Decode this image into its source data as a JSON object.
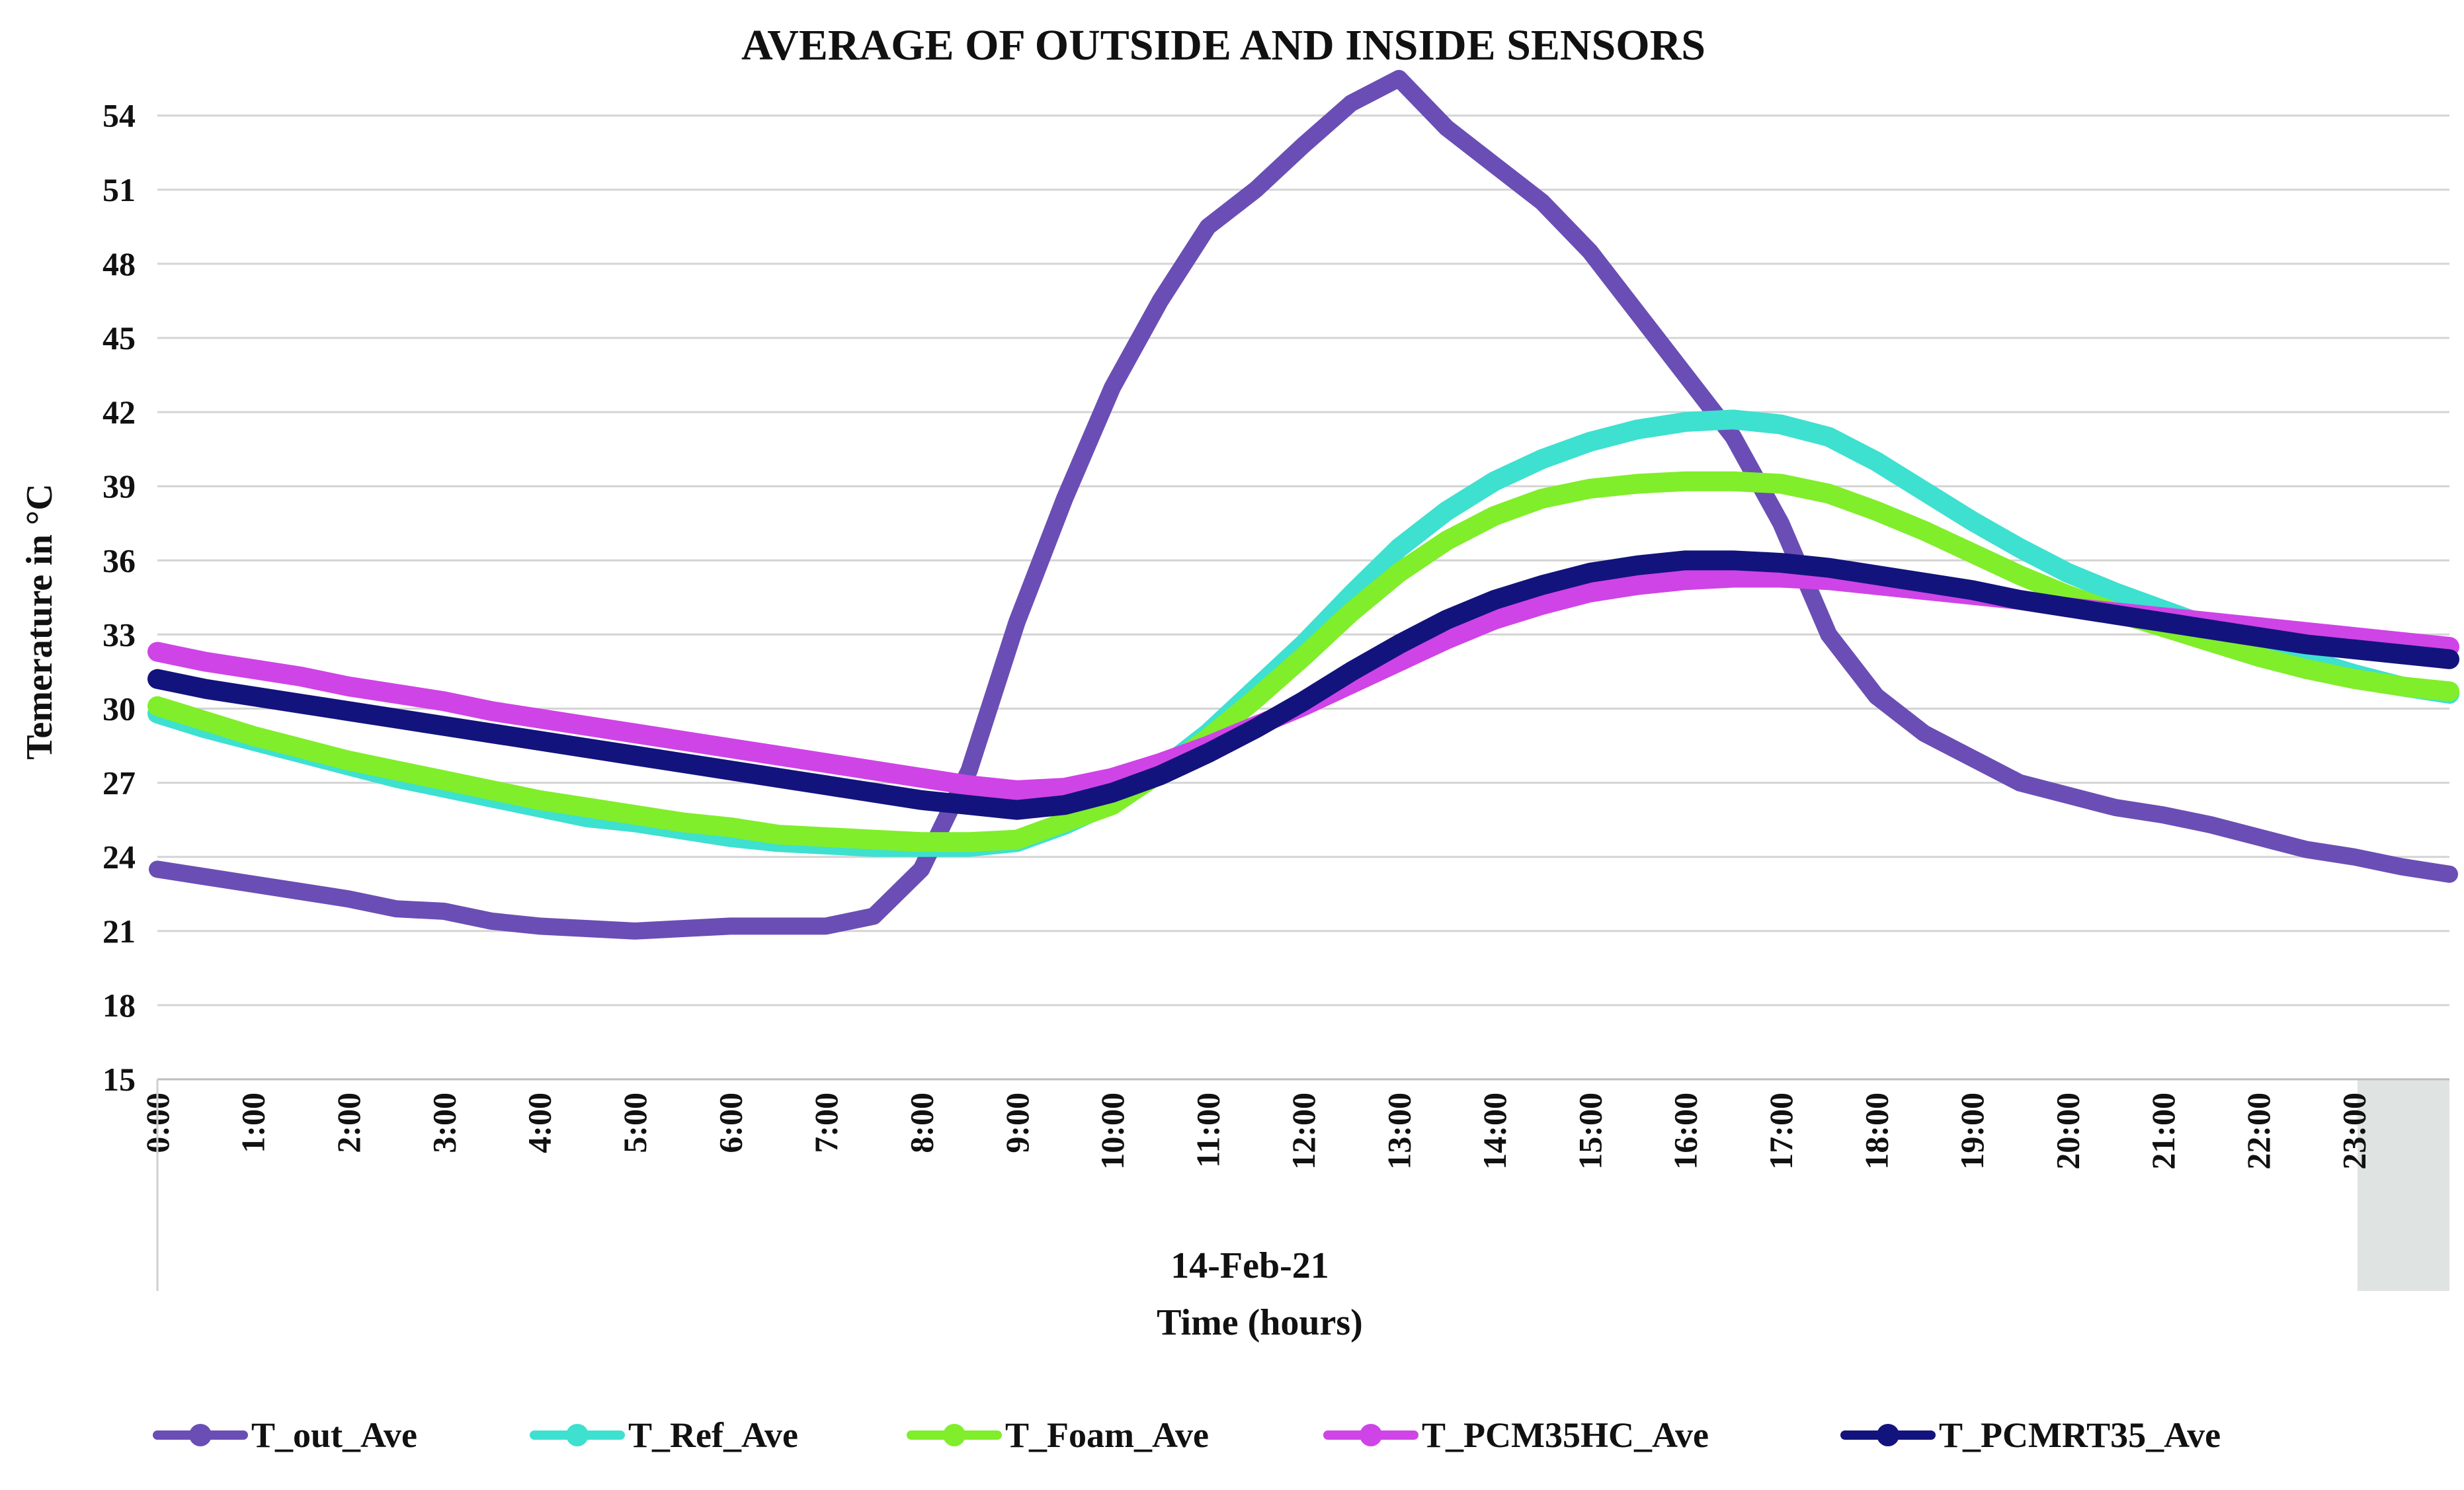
{
  "chart_data": {
    "type": "line",
    "title": "AVERAGE OF OUTSIDE AND INSIDE SENSORS",
    "xlabel": "Time (hours)",
    "date_label": "14-Feb-21",
    "ylabel": "Temerature in °C",
    "ylim": [
      15,
      56
    ],
    "y_ticks": [
      15,
      18,
      21,
      24,
      27,
      30,
      33,
      36,
      39,
      42,
      45,
      48,
      51,
      54
    ],
    "grid": true,
    "legend_position": "bottom",
    "x_range": [
      0,
      24
    ],
    "categories": [
      "0:00",
      "1:00",
      "2:00",
      "3:00",
      "4:00",
      "5:00",
      "6:00",
      "7:00",
      "8:00",
      "9:00",
      "10:00",
      "11:00",
      "12:00",
      "13:00",
      "14:00",
      "15:00",
      "16:00",
      "17:00",
      "18:00",
      "19:00",
      "20:00",
      "21:00",
      "22:00",
      "23:00"
    ],
    "x": [
      0,
      0.5,
      1,
      1.5,
      2,
      2.5,
      3,
      3.5,
      4,
      4.5,
      5,
      5.5,
      6,
      6.5,
      7,
      7.5,
      8,
      8.5,
      9,
      9.5,
      10,
      10.5,
      11,
      11.5,
      12,
      12.5,
      13,
      13.5,
      14,
      14.5,
      15,
      15.5,
      16,
      16.5,
      17,
      17.5,
      18,
      18.5,
      19,
      19.5,
      20,
      20.5,
      21,
      21.5,
      22,
      22.5,
      23,
      23.5,
      24
    ],
    "series": [
      {
        "name": "T_out_Ave",
        "color": "#6a4eb5",
        "values": [
          23.5,
          23.2,
          22.9,
          22.6,
          22.3,
          21.9,
          21.8,
          21.4,
          21.2,
          21.1,
          21.0,
          21.1,
          21.2,
          21.2,
          21.2,
          21.6,
          23.5,
          27.5,
          33.5,
          38.5,
          43.0,
          46.5,
          49.5,
          51.0,
          52.8,
          54.5,
          55.5,
          53.5,
          52.0,
          50.5,
          48.5,
          46.0,
          43.5,
          41.0,
          37.5,
          33.0,
          30.5,
          29.0,
          28.0,
          27.0,
          26.5,
          26.0,
          25.7,
          25.3,
          24.8,
          24.3,
          24.0,
          23.6,
          23.3
        ]
      },
      {
        "name": "T_Ref_Ave",
        "color": "#3ee0d0",
        "values": [
          29.8,
          29.2,
          28.7,
          28.2,
          27.7,
          27.2,
          26.8,
          26.4,
          26.0,
          25.6,
          25.4,
          25.1,
          24.8,
          24.6,
          24.5,
          24.4,
          24.4,
          24.4,
          24.6,
          25.3,
          26.2,
          27.5,
          29.0,
          30.8,
          32.6,
          34.6,
          36.5,
          38.0,
          39.2,
          40.1,
          40.8,
          41.3,
          41.6,
          41.7,
          41.5,
          41.0,
          40.0,
          38.8,
          37.6,
          36.5,
          35.5,
          34.7,
          34.0,
          33.3,
          32.6,
          32.0,
          31.4,
          30.9,
          30.6
        ]
      },
      {
        "name": "T_Foam_Ave",
        "color": "#80ee2a",
        "values": [
          30.1,
          29.5,
          28.9,
          28.4,
          27.9,
          27.5,
          27.1,
          26.7,
          26.3,
          26.0,
          25.7,
          25.4,
          25.2,
          24.9,
          24.8,
          24.7,
          24.6,
          24.6,
          24.7,
          25.4,
          26.1,
          27.4,
          28.8,
          30.4,
          32.1,
          33.9,
          35.5,
          36.8,
          37.8,
          38.5,
          38.9,
          39.1,
          39.2,
          39.2,
          39.1,
          38.7,
          38.0,
          37.2,
          36.3,
          35.4,
          34.6,
          33.9,
          33.3,
          32.7,
          32.1,
          31.6,
          31.2,
          30.9,
          30.7
        ]
      },
      {
        "name": "T_PCM35HC_Ave",
        "color": "#cf44e6",
        "values": [
          32.3,
          31.9,
          31.6,
          31.3,
          30.9,
          30.6,
          30.3,
          29.9,
          29.6,
          29.3,
          29.0,
          28.7,
          28.4,
          28.1,
          27.8,
          27.5,
          27.2,
          26.9,
          26.7,
          26.8,
          27.2,
          27.8,
          28.5,
          29.3,
          30.1,
          31.0,
          31.9,
          32.8,
          33.6,
          34.2,
          34.7,
          35.0,
          35.2,
          35.3,
          35.3,
          35.2,
          35.0,
          34.8,
          34.6,
          34.4,
          34.1,
          33.9,
          33.7,
          33.5,
          33.3,
          33.1,
          32.9,
          32.7,
          32.5
        ]
      },
      {
        "name": "T_PCMRT35_Ave",
        "color": "#13137d",
        "values": [
          31.2,
          30.8,
          30.5,
          30.2,
          29.9,
          29.6,
          29.3,
          29.0,
          28.7,
          28.4,
          28.1,
          27.8,
          27.5,
          27.2,
          26.9,
          26.6,
          26.3,
          26.1,
          25.9,
          26.1,
          26.6,
          27.3,
          28.2,
          29.2,
          30.3,
          31.5,
          32.6,
          33.6,
          34.4,
          35.0,
          35.5,
          35.8,
          36.0,
          36.0,
          35.9,
          35.7,
          35.4,
          35.1,
          34.8,
          34.4,
          34.1,
          33.8,
          33.5,
          33.2,
          32.9,
          32.6,
          32.4,
          32.2,
          32.0
        ]
      }
    ]
  }
}
